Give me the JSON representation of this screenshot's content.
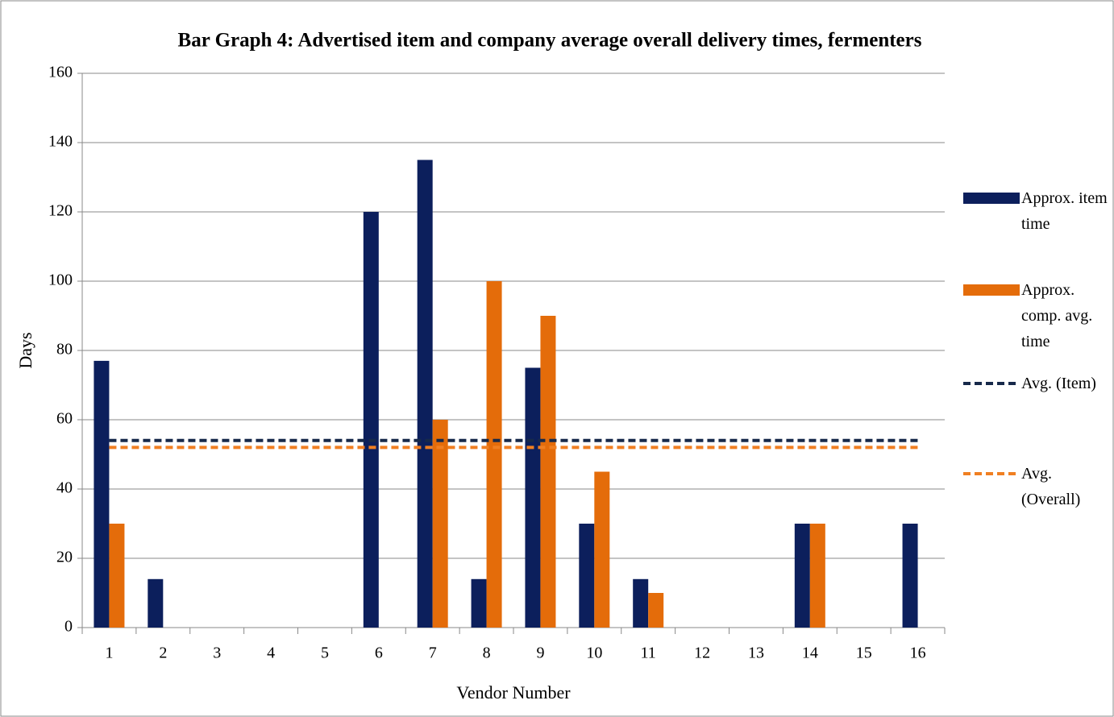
{
  "chart_data": {
    "type": "bar",
    "title": "Bar Graph 4: Advertised item and company average overall delivery times, fermenters",
    "x_label": "Vendor Number",
    "y_label": "Days",
    "categories": [
      "1",
      "2",
      "3",
      "4",
      "5",
      "6",
      "7",
      "8",
      "9",
      "10",
      "11",
      "12",
      "13",
      "14",
      "15",
      "16"
    ],
    "series": [
      {
        "name": "Approx. item time",
        "color": "#0c1f5c",
        "values": [
          77,
          14,
          0,
          0,
          0,
          120,
          135,
          14,
          75,
          30,
          14,
          0,
          0,
          30,
          0,
          30
        ]
      },
      {
        "name": "Approx. comp. avg. time",
        "color": "#e46c0a",
        "values": [
          30,
          0,
          0,
          0,
          0,
          0,
          60,
          100,
          90,
          45,
          10,
          0,
          0,
          30,
          0,
          0
        ]
      },
      {
        "name": "Avg. (Item)",
        "type": "line",
        "dashed": true,
        "color": "#17294a",
        "values": [
          54,
          54,
          54,
          54,
          54,
          54,
          54,
          54,
          54,
          54,
          54,
          54,
          54,
          54,
          54,
          54
        ]
      },
      {
        "name": "Avg. (Overall)",
        "type": "line",
        "dashed": true,
        "color": "#f07f22",
        "values": [
          52,
          52,
          52,
          52,
          52,
          52,
          52,
          52,
          52,
          52,
          52,
          52,
          52,
          52,
          52,
          52
        ]
      }
    ],
    "ylim": [
      0,
      160
    ],
    "yticks": [
      0,
      20,
      40,
      60,
      80,
      100,
      120,
      140,
      160
    ],
    "grid": true,
    "legend": "right"
  }
}
